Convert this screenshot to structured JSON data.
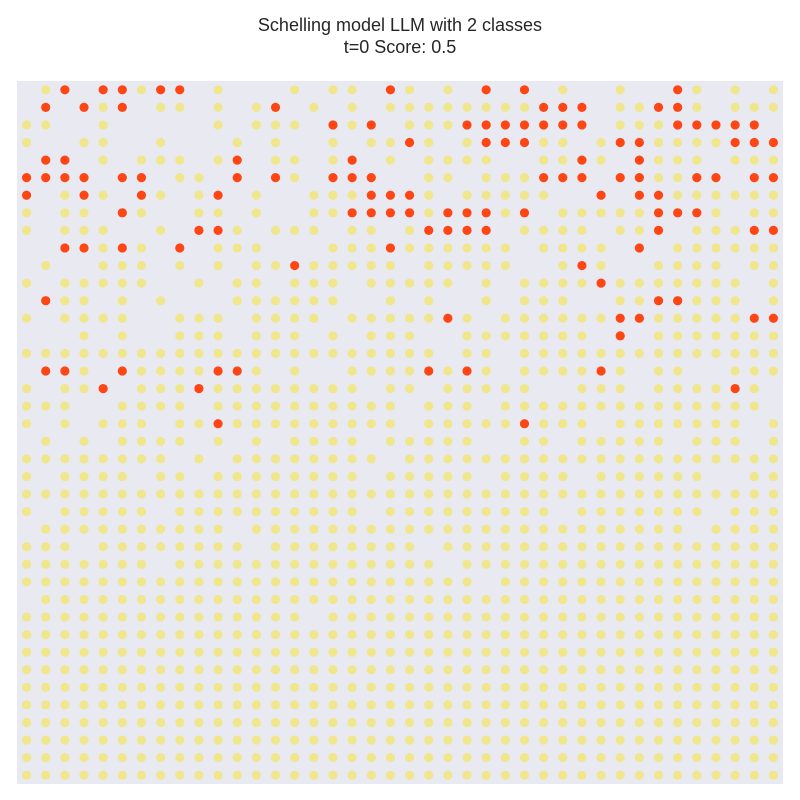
{
  "chart_data": {
    "type": "scatter",
    "title": "Schelling model LLM with 2 classes",
    "subtitle": "t=0 Score: 0.5",
    "grid": false,
    "axes_visible": false,
    "grid_size": 40,
    "colors": {
      "background": "#e9e9f1",
      "class_a": "#fe4514",
      "class_b": "#f0e68c"
    },
    "legend": "none",
    "rows": [
      ".ba.aabaa.b...b.bb.ab.b.a.a.b..b..ab.b.ba.b.ab.b",
      ".a.aba.bb.b.ba.b.b.bbbbbbbbaaa.bbaab.bbbbbbabb.ba",
      "bb..b.....b.bbb.aba.bbbaaaaaaa.bbbaaaaa..bbaaa..b.b",
      "b..bb..b...b.b..b.bbab.baaabb.baabbbbaaaa.a.bbbb",
      ".aa.b.bbb.ba.bb.ba.b.bbbb..bbab.abbb.bbbbaaab.bb",
      "aaaa.aa.bb.a.ab.aaa..bb.bbbaaa.aabbaa.aab.aa.bb.",
      "a.bab.ab.ba.b..bbbaaab.bbbbb..a.aabbbbbb.abaa.b",
      "b.bb.ab..bb.b..bbaaaabaaaba.bbbbbaaab.bb.ba.bab",
      "b.bbb..b.aab.bbb.bb.baaaa.bbbb.bba.bbbaa.b.bab",
      "..aabab.a.bbb...bbbabbbbbb.bbbb.a.bbbbbb.aa.bbba",
      ".b..bbb.b.b.bbabbbbb.bbbbb..bab..bbbb.bb.bbb.ab.",
      "b.bbbbb..b.bb.bbb.bbbbb.b.bbbbabbbbbbb.bb.abbbab",
      ".abb.b.b...bbbbbb..b.b..b.bbb..bbaabbb.baab.ab.b",
      "b.bbbb..bbb.bbbb.bbbbbab.bbbbbbaabbbbbaaaa.bb.b.",
      "...b.b..bbb.bbb.b.bbb..bbbbbbb.a.bbbbbbba...b.bb",
      "bbbbbbbbbbbbbbbbbbbbbb.bb.bbbbbbbbbbbbbbbbb.bbbb",
      ".aab.abbbbaab.b..bbbbabab.bbbbab.bb..bbbbbbb.bba",
      "b.bba.bbbabbbbbbbb.bb.bbbbb..bbb.bbbbab.bbb.b.bb",
      "bbb..bbbb.bbbbbbbbbb.bbb.bbbbbbbbbbbbbb.bbbbbbb",
      "b.b.bbb.bbabbbbbbbbb.bbbbbabbb.bbbbbbb.b.bbbabb",
      ".b.b.bbbb.b.b.bbbb.bbbbb..bb.bbbbb.bbb.bbbbb.b",
      "bbbbbbbb.b.bbbbbbbb.bbbbbbbbbbbbbbbbbbbbbbbbbbb",
      "b.bbbb.bb.bbbbbbbb.bbbbb.bbbb.bbbbbb..bb.bbbbb.",
      "bbbbbbbbbbbbbbbbbbbbbbbbbbbbbbbbbbbbbbbbbbbbbbb",
      "b.bbbbb.bbbbbbbbbb.bbbbbbbbb.bbbbbbb.bbbbbbbbbbb",
      ".bbbbbbbbbb.bbbbbbbbbbbbbbbbbbbbbbb.bbbbbb.bbbbb",
      "bbb.bbbbbbbb.bbbbbbbb.bbbbbbbbbbbbbbbbbbbbbbbbbbb",
      "bbbbbbb.bbbbbbbbbbbbbb.bbbbbbbbbbbbbbbbbbbbbb.bb",
      "bbbbbbbbbbbbbbbbbbbbbbbb.bbbbbbbbbbbbbbbbbbbbbbb",
      ".bbbbbbbbbbbbbbbbbbbbbbbbbbbbbbbbbbbbbbbbbbbbbbb",
      "bbbbbbbbbbbbbbb.bbbbbbbbbbbbbbbbbbbbbbbbbbbbbbbb",
      "bbbbbbbbbbbbbbbbbbbbbbbbbbbbbbbbbbbbbbbbbbbbbbbb",
      "bbbbbbbbbbbbbbbbbbbbbbbbbbbbbbbbbbbbbbbbbbbbbbbb",
      "bbbbbbbbbbbbbbbbbbbbbbbbbbbbbbbbbbbbbbbbbbbbbbbb",
      "bbbbbbbbbbbbbbbbbbbbbbbbbbbbbbbbbbbbbbbbbbbbbbbb",
      "bbbbbbbbbbbbbbbbbbbbbbbbbbbbbbbbbbbbbbbbbbbbbbbb",
      "bbbbbbbbbbbbbbbbbbbbbbbbbbbbbbbbbbbbbbbbbbbbbbbb",
      "bbbbbbbbbbbbbbbbbbbbbbbbbbbbbbbbbbbbbbbbbbbbbbbb",
      "bbbbbbbbbbbbbbbbbbbbbbbbbbbbbbbbbbbbbbbbbbbbbbbb",
      "bbbbbbbbbbbbbbbbbbbbbbbbbbbbbbbbbbbbbbbbbbbbbbbb"
    ]
  }
}
